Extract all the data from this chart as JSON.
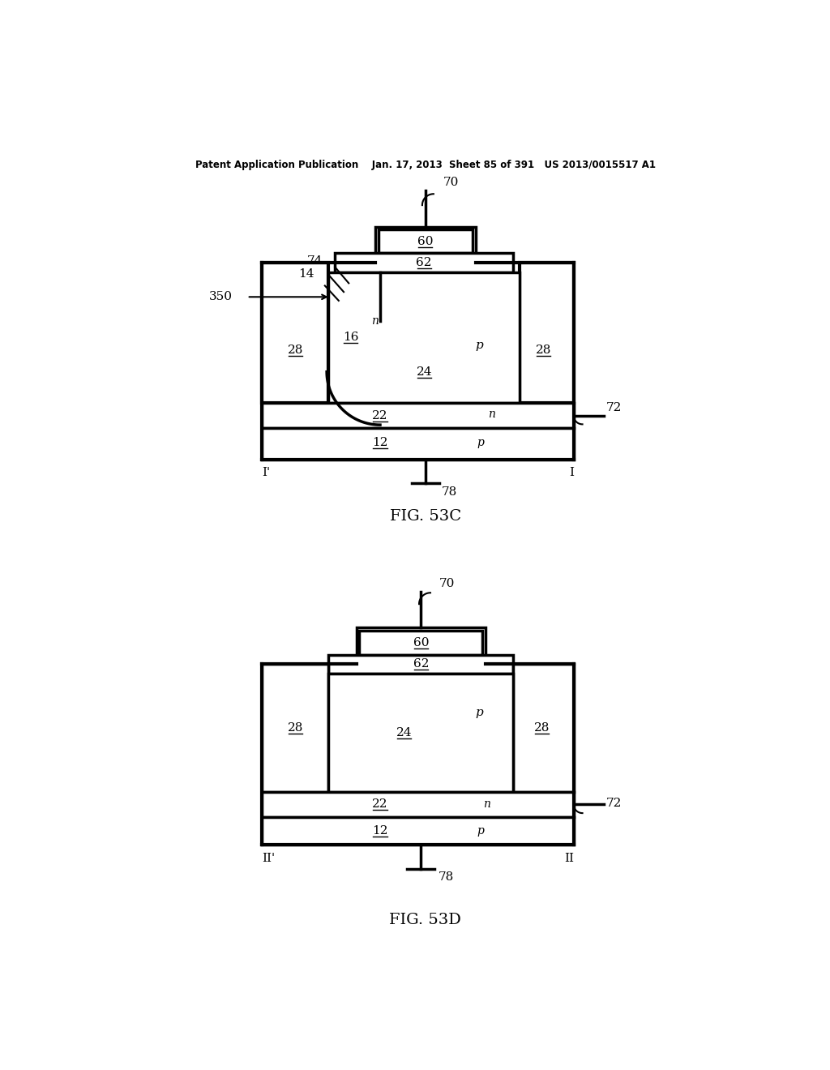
{
  "bg_color": "#ffffff",
  "line_color": "#000000",
  "header_text": "Patent Application Publication    Jan. 17, 2013  Sheet 85 of 391   US 2013/0015517 A1",
  "fig53c_label": "FIG. 53C",
  "fig53d_label": "FIG. 53D"
}
